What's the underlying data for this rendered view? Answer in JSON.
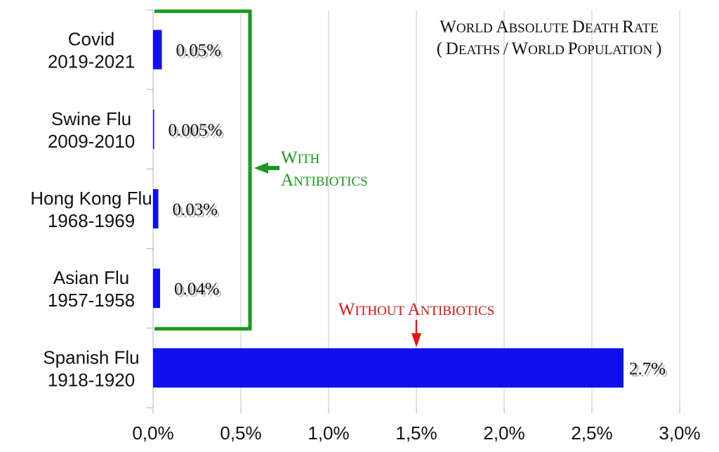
{
  "chart_data": {
    "type": "bar",
    "orientation": "horizontal",
    "title": "World Absolute Death Rate",
    "subtitle": "( Deaths / World Population )",
    "categories": [
      {
        "name": "Covid",
        "years": "2019-2021",
        "value": 0.05,
        "label": "0.05%"
      },
      {
        "name": "Swine Flu",
        "years": "2009-2010",
        "value": 0.005,
        "label": "0.005%"
      },
      {
        "name": "Hong Kong Flu",
        "years": "1968-1969",
        "value": 0.03,
        "label": "0.03%"
      },
      {
        "name": "Asian Flu",
        "years": "1957-1958",
        "value": 0.04,
        "label": "0.04%"
      },
      {
        "name": "Spanish Flu",
        "years": "1918-1920",
        "value": 2.68,
        "label": "2.7%"
      }
    ],
    "xlim": [
      0,
      3.0
    ],
    "x_ticks": [
      0,
      0.5,
      1.0,
      1.5,
      2.0,
      2.5,
      3.0
    ],
    "x_tick_labels": [
      "0,0%",
      "0,5%",
      "1,0%",
      "1,5%",
      "2,0%",
      "2,5%",
      "3,0%"
    ],
    "xlabel": "",
    "ylabel": "",
    "grid": "vertical",
    "legend": "none",
    "bar_color": "#1010ee",
    "annotations": {
      "with_antibiotics": {
        "text": "With Antibiotics",
        "color": "#1a9a1a",
        "groups": [
          "Covid",
          "Swine Flu",
          "Hong Kong Flu",
          "Asian Flu"
        ]
      },
      "without_antibiotics": {
        "text": "Without Antibiotics",
        "color": "#ee1111",
        "points_to_value": 1.5,
        "group": "Spanish Flu"
      }
    }
  }
}
